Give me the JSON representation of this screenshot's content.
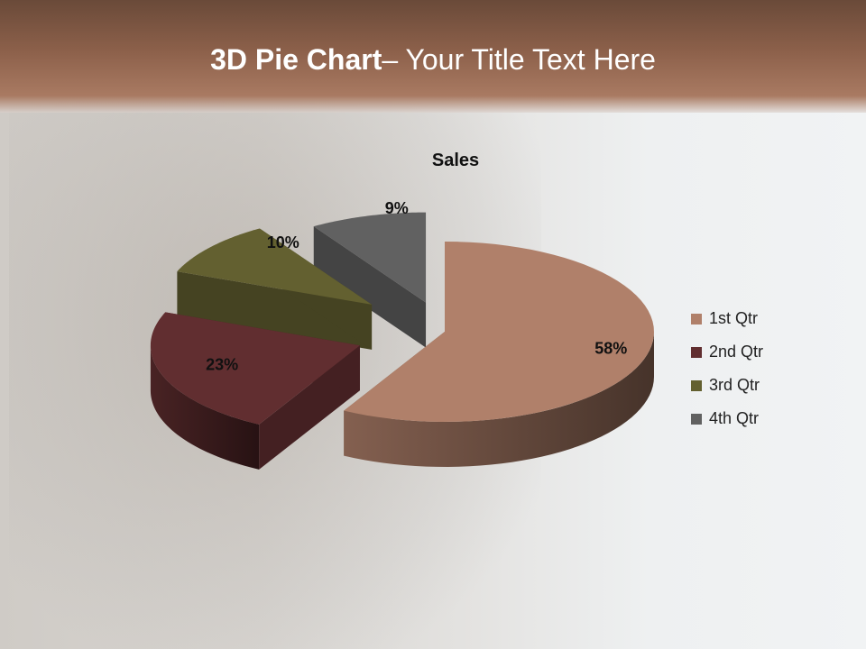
{
  "slide": {
    "title_bold": "3D Pie Chart",
    "title_rest": "– Your Title Text Here"
  },
  "chart_data": {
    "type": "pie",
    "style": "3d-exploded",
    "title": "Sales",
    "categories": [
      "1st Qtr",
      "2nd Qtr",
      "3rd Qtr",
      "4th Qtr"
    ],
    "values": [
      58,
      23,
      10,
      9
    ],
    "labels": [
      "58%",
      "23%",
      "10%",
      "9%"
    ],
    "colors": [
      "#b0806a",
      "#612e30",
      "#636030",
      "#616161"
    ],
    "legend_position": "right"
  }
}
